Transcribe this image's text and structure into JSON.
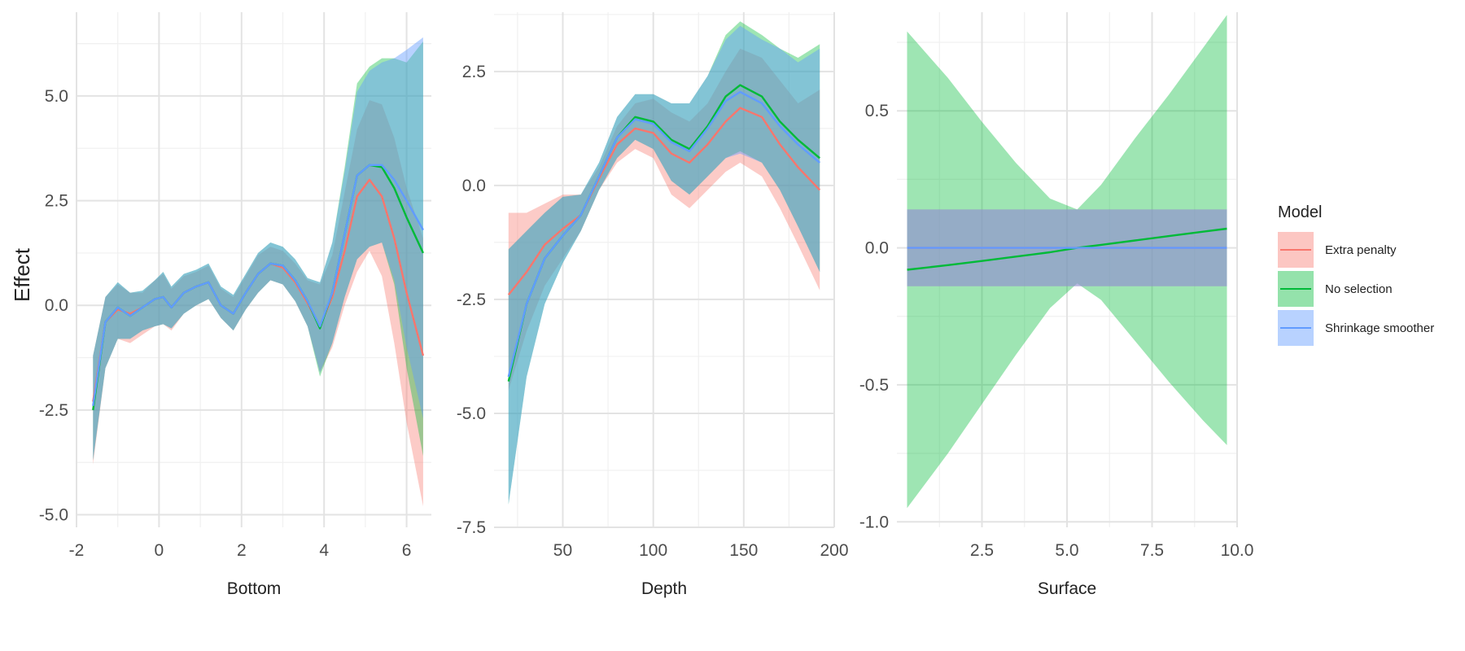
{
  "colors": {
    "extra_penalty": "#F8766D",
    "no_selection": "#00BA38",
    "shrinkage": "#619CFF",
    "band_overlap": "#5F9EAA",
    "grid_major": "#e3e3e3",
    "grid_minor": "#f0f0f0"
  },
  "legend": {
    "title": "Model",
    "placement": "right",
    "items": [
      {
        "key": "extra_penalty",
        "label": "Extra penalty"
      },
      {
        "key": "no_selection",
        "label": "No selection"
      },
      {
        "key": "shrinkage",
        "label": "Shrinkage smoother"
      }
    ]
  },
  "chart_data": [
    {
      "type": "line",
      "panel": "bottom",
      "xlabel": "Bottom",
      "ylabel": "Effect",
      "xlim": [
        -2,
        6.6
      ],
      "ylim": [
        -5.3,
        7.0
      ],
      "xticks": [
        -2,
        0,
        2,
        4,
        6
      ],
      "xtick_labels": [
        "-2",
        "0",
        "2",
        "4",
        "6"
      ],
      "yticks": [
        -5,
        -2.5,
        0,
        2.5,
        5
      ],
      "ytick_labels": [
        "-5.0",
        "-2.5",
        "0.0",
        "2.5",
        "5.0"
      ],
      "grid": true,
      "x": [
        -1.6,
        -1.3,
        -1.0,
        -0.7,
        -0.4,
        -0.1,
        0.1,
        0.3,
        0.6,
        0.9,
        1.2,
        1.5,
        1.8,
        2.1,
        2.4,
        2.7,
        3.0,
        3.3,
        3.6,
        3.9,
        4.2,
        4.5,
        4.8,
        5.1,
        5.4,
        5.7,
        6.0,
        6.4
      ],
      "bands": [
        {
          "key": "extra_penalty",
          "name": "Extra penalty",
          "lower": [
            -3.8,
            -1.5,
            -0.8,
            -0.9,
            -0.7,
            -0.5,
            -0.45,
            -0.6,
            -0.2,
            0.0,
            0.15,
            -0.3,
            -0.6,
            -0.1,
            0.3,
            0.6,
            0.5,
            0.1,
            -0.5,
            -1.6,
            -1.0,
            0.0,
            0.8,
            1.3,
            0.7,
            -0.9,
            -2.8,
            -4.8
          ],
          "upper": [
            -1.2,
            0.2,
            0.5,
            0.3,
            0.3,
            0.6,
            0.75,
            0.4,
            0.7,
            0.8,
            0.95,
            0.4,
            0.2,
            0.7,
            1.2,
            1.4,
            1.3,
            1.0,
            0.6,
            0.5,
            1.2,
            2.7,
            4.2,
            4.9,
            4.8,
            4.0,
            2.8,
            1.6
          ]
        },
        {
          "key": "no_selection",
          "name": "No selection",
          "lower": [
            -3.7,
            -1.5,
            -0.8,
            -0.8,
            -0.6,
            -0.5,
            -0.45,
            -0.55,
            -0.2,
            0.0,
            0.15,
            -0.3,
            -0.6,
            -0.1,
            0.3,
            0.6,
            0.5,
            0.1,
            -0.5,
            -1.7,
            -0.9,
            0.2,
            1.1,
            1.4,
            1.5,
            0.5,
            -1.5,
            -3.6
          ],
          "upper": [
            -1.2,
            0.2,
            0.55,
            0.3,
            0.35,
            0.6,
            0.8,
            0.45,
            0.75,
            0.85,
            1.0,
            0.45,
            0.25,
            0.75,
            1.25,
            1.5,
            1.4,
            1.1,
            0.65,
            0.55,
            1.5,
            3.3,
            5.3,
            5.7,
            5.9,
            5.9,
            5.8,
            6.3
          ]
        },
        {
          "key": "shrinkage",
          "name": "Shrinkage smoother",
          "lower": [
            -3.7,
            -1.5,
            -0.8,
            -0.8,
            -0.6,
            -0.5,
            -0.45,
            -0.55,
            -0.2,
            0.0,
            0.15,
            -0.3,
            -0.6,
            -0.1,
            0.3,
            0.6,
            0.5,
            0.1,
            -0.5,
            -1.6,
            -0.9,
            0.2,
            1.1,
            1.4,
            1.5,
            0.6,
            -1.0,
            -2.7
          ],
          "upper": [
            -1.2,
            0.2,
            0.55,
            0.3,
            0.35,
            0.6,
            0.8,
            0.45,
            0.75,
            0.85,
            1.0,
            0.45,
            0.25,
            0.75,
            1.25,
            1.5,
            1.4,
            1.1,
            0.65,
            0.55,
            1.5,
            3.2,
            5.1,
            5.6,
            5.8,
            5.9,
            6.1,
            6.4
          ]
        }
      ],
      "series": [
        {
          "key": "extra_penalty",
          "name": "Extra penalty",
          "values": [
            -2.3,
            -0.4,
            -0.1,
            -0.2,
            -0.05,
            0.15,
            0.2,
            -0.05,
            0.3,
            0.45,
            0.55,
            0.0,
            -0.2,
            0.3,
            0.75,
            1.0,
            0.9,
            0.55,
            0.05,
            -0.5,
            0.2,
            1.3,
            2.6,
            3.0,
            2.6,
            1.6,
            0.3,
            -1.2
          ]
        },
        {
          "key": "no_selection",
          "name": "No selection",
          "values": [
            -2.5,
            -0.4,
            -0.05,
            -0.25,
            -0.05,
            0.15,
            0.2,
            -0.05,
            0.3,
            0.45,
            0.55,
            0.0,
            -0.2,
            0.3,
            0.75,
            1.0,
            0.95,
            0.6,
            0.1,
            -0.55,
            0.3,
            1.7,
            3.1,
            3.35,
            3.3,
            2.8,
            2.1,
            1.25
          ]
        },
        {
          "key": "shrinkage",
          "name": "Shrinkage smoother",
          "values": [
            -2.4,
            -0.4,
            -0.05,
            -0.25,
            -0.05,
            0.15,
            0.2,
            -0.05,
            0.3,
            0.45,
            0.55,
            0.0,
            -0.2,
            0.3,
            0.75,
            1.0,
            0.95,
            0.6,
            0.1,
            -0.5,
            0.3,
            1.7,
            3.1,
            3.35,
            3.35,
            3.0,
            2.5,
            1.8
          ]
        }
      ]
    },
    {
      "type": "line",
      "panel": "depth",
      "xlabel": "Depth",
      "ylabel": "",
      "xlim": [
        12,
        200
      ],
      "ylim": [
        -7.5,
        3.8
      ],
      "xticks": [
        50,
        100,
        150,
        200
      ],
      "xtick_labels": [
        "50",
        "100",
        "150",
        "200"
      ],
      "yticks": [
        -7.5,
        -5,
        -2.5,
        0,
        2.5
      ],
      "ytick_labels": [
        "-7.5",
        "-5.0",
        "-2.5",
        "0.0",
        "2.5"
      ],
      "grid": true,
      "x": [
        20,
        30,
        40,
        50,
        60,
        70,
        80,
        90,
        100,
        110,
        120,
        130,
        140,
        148,
        160,
        170,
        180,
        192
      ],
      "bands": [
        {
          "key": "extra_penalty",
          "name": "Extra penalty",
          "lower": [
            -4.5,
            -3.2,
            -2.2,
            -1.6,
            -1.0,
            -0.1,
            0.5,
            0.8,
            0.6,
            -0.2,
            -0.5,
            -0.1,
            0.3,
            0.5,
            0.2,
            -0.5,
            -1.3,
            -2.3
          ],
          "upper": [
            -0.6,
            -0.6,
            -0.4,
            -0.2,
            -0.2,
            0.4,
            1.3,
            1.8,
            1.9,
            1.6,
            1.4,
            1.8,
            2.5,
            3.0,
            2.8,
            2.3,
            1.8,
            2.1
          ]
        },
        {
          "key": "no_selection",
          "name": "No selection",
          "lower": [
            -7.0,
            -4.2,
            -2.6,
            -1.7,
            -1.0,
            -0.1,
            0.6,
            1.0,
            0.8,
            0.1,
            -0.2,
            0.2,
            0.6,
            0.75,
            0.5,
            -0.1,
            -0.9,
            -1.9
          ],
          "upper": [
            -1.4,
            -1.0,
            -0.6,
            -0.25,
            -0.2,
            0.5,
            1.5,
            2.0,
            2.0,
            1.8,
            1.8,
            2.4,
            3.3,
            3.6,
            3.3,
            3.0,
            2.8,
            3.1
          ]
        },
        {
          "key": "shrinkage",
          "name": "Shrinkage smoother",
          "lower": [
            -7.0,
            -4.2,
            -2.6,
            -1.7,
            -1.0,
            -0.1,
            0.6,
            1.0,
            0.8,
            0.1,
            -0.2,
            0.2,
            0.6,
            0.7,
            0.5,
            -0.1,
            -0.9,
            -1.9
          ],
          "upper": [
            -1.4,
            -1.0,
            -0.6,
            -0.25,
            -0.2,
            0.5,
            1.5,
            2.0,
            2.0,
            1.8,
            1.8,
            2.4,
            3.2,
            3.5,
            3.2,
            3.0,
            2.7,
            3.0
          ]
        }
      ],
      "series": [
        {
          "key": "extra_penalty",
          "name": "Extra penalty",
          "values": [
            -2.4,
            -1.9,
            -1.3,
            -0.95,
            -0.65,
            0.15,
            0.9,
            1.25,
            1.15,
            0.7,
            0.5,
            0.9,
            1.4,
            1.7,
            1.5,
            0.9,
            0.4,
            -0.1
          ]
        },
        {
          "key": "no_selection",
          "name": "No selection",
          "values": [
            -4.3,
            -2.6,
            -1.6,
            -1.1,
            -0.65,
            0.2,
            1.05,
            1.5,
            1.4,
            1.0,
            0.8,
            1.3,
            1.95,
            2.2,
            1.95,
            1.4,
            1.0,
            0.6
          ]
        },
        {
          "key": "shrinkage",
          "name": "Shrinkage smoother",
          "values": [
            -4.2,
            -2.6,
            -1.6,
            -1.1,
            -0.65,
            0.2,
            1.05,
            1.45,
            1.35,
            0.95,
            0.75,
            1.25,
            1.85,
            2.05,
            1.8,
            1.3,
            0.9,
            0.5
          ]
        }
      ]
    },
    {
      "type": "line",
      "panel": "surface",
      "xlabel": "Surface",
      "ylabel": "",
      "xlim": [
        0,
        10
      ],
      "ylim": [
        -1.02,
        0.86
      ],
      "xticks": [
        2.5,
        5.0,
        7.5,
        10.0
      ],
      "xtick_labels": [
        "2.5",
        "5.0",
        "7.5",
        "10.0"
      ],
      "yticks": [
        -1.0,
        -0.5,
        0.0,
        0.5
      ],
      "ytick_labels": [
        "-1.0",
        "-0.5",
        "0.0",
        "0.5"
      ],
      "grid": true,
      "x": [
        0.3,
        1.5,
        2.5,
        3.5,
        4.5,
        5.3,
        6.0,
        7.0,
        8.0,
        9.0,
        9.7
      ],
      "bands": [
        {
          "key": "no_selection",
          "name": "No selection",
          "lower": [
            -0.95,
            -0.75,
            -0.57,
            -0.39,
            -0.22,
            -0.13,
            -0.19,
            -0.34,
            -0.49,
            -0.63,
            -0.72
          ],
          "upper": [
            0.79,
            0.62,
            0.46,
            0.31,
            0.18,
            0.14,
            0.23,
            0.4,
            0.56,
            0.73,
            0.85
          ]
        },
        {
          "key": "extra_penalty",
          "name": "Extra penalty",
          "lower": [
            -0.14,
            -0.14,
            -0.14,
            -0.14,
            -0.14,
            -0.14,
            -0.14,
            -0.14,
            -0.14,
            -0.14,
            -0.14
          ],
          "upper": [
            0.14,
            0.14,
            0.14,
            0.14,
            0.14,
            0.14,
            0.14,
            0.14,
            0.14,
            0.14,
            0.14
          ]
        },
        {
          "key": "shrinkage",
          "name": "Shrinkage smoother",
          "lower": [
            -0.14,
            -0.14,
            -0.14,
            -0.14,
            -0.14,
            -0.14,
            -0.14,
            -0.14,
            -0.14,
            -0.14,
            -0.14
          ],
          "upper": [
            0.14,
            0.14,
            0.14,
            0.14,
            0.14,
            0.14,
            0.14,
            0.14,
            0.14,
            0.14,
            0.14
          ]
        }
      ],
      "series": [
        {
          "key": "extra_penalty",
          "name": "Extra penalty",
          "values": [
            0,
            0,
            0,
            0,
            0,
            0,
            0,
            0,
            0,
            0,
            0
          ]
        },
        {
          "key": "no_selection",
          "name": "No selection",
          "values": [
            -0.08,
            -0.063,
            -0.048,
            -0.032,
            -0.016,
            0.0,
            0.011,
            0.027,
            0.043,
            0.059,
            0.07
          ]
        },
        {
          "key": "shrinkage",
          "name": "Shrinkage smoother",
          "values": [
            0,
            0,
            0,
            0,
            0,
            0,
            0,
            0,
            0,
            0,
            0
          ]
        }
      ]
    }
  ]
}
